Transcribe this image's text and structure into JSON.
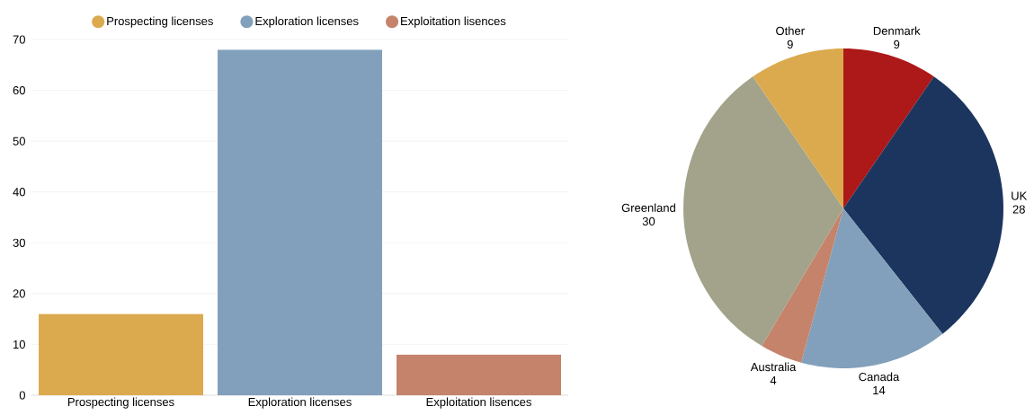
{
  "chart_data": [
    {
      "type": "bar",
      "categories": [
        "Prospecting licenses",
        "Exploration licenses",
        "Exploitation lisences"
      ],
      "series": [
        {
          "name": "Prospecting licenses",
          "color": "#dcaa4e",
          "values": [
            16,
            null,
            null
          ]
        },
        {
          "name": "Exploration licenses",
          "color": "#82a0bb",
          "values": [
            null,
            68,
            null
          ]
        },
        {
          "name": "Exploitation lisences",
          "color": "#c4836a",
          "values": [
            null,
            null,
            8
          ]
        }
      ],
      "ylim": [
        0,
        70
      ],
      "yticks": [
        0,
        10,
        20,
        30,
        40,
        50,
        60,
        70
      ],
      "grid": "y",
      "legend": "top"
    },
    {
      "type": "pie",
      "categories": [
        "Denmark",
        "UK",
        "Canada",
        "Australia",
        "Greenland",
        "Other"
      ],
      "values": [
        9,
        28,
        14,
        4,
        30,
        9
      ],
      "colors": [
        "#ad1818",
        "#1b355e",
        "#82a0bb",
        "#c4836a",
        "#a2a38a",
        "#dcaa4e"
      ],
      "data_labels": true
    }
  ]
}
